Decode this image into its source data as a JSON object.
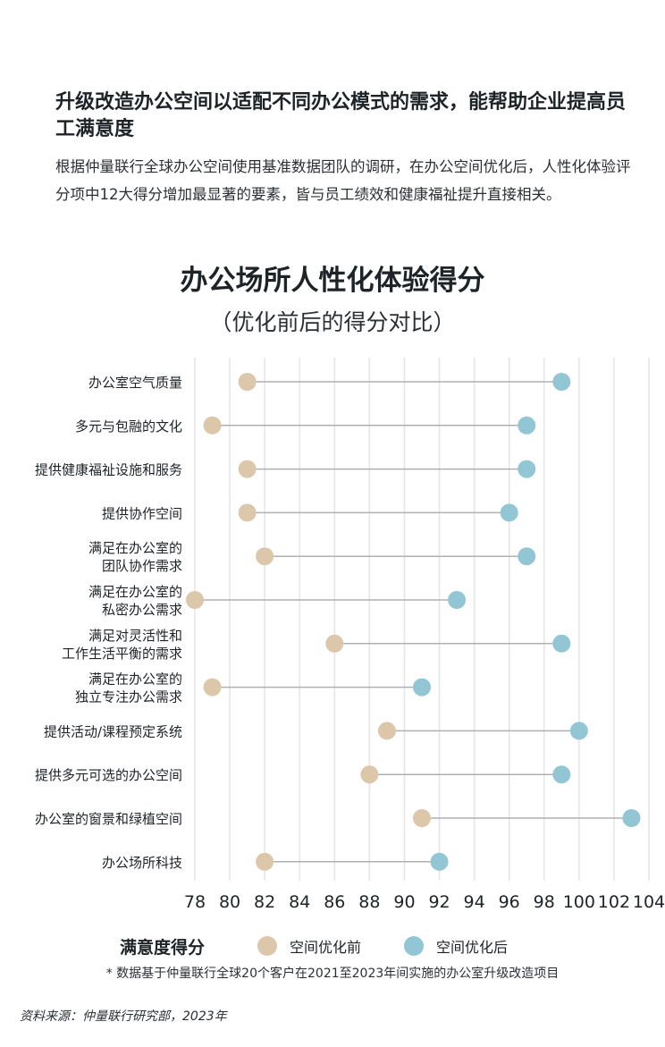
{
  "headline": "升级改造办公空间以适配不同办公模式的需求，能帮助企业提高员工满意度",
  "body": "根据仲量联行全球办公空间使用基准数据团队的调研，在办公空间优化后，人性化体验评分项中12大得分增加最显著的要素，皆与员工绩效和健康福祉提升直接相关。",
  "colors": {
    "before": "#dcc7ab",
    "after": "#92c6d5",
    "connector": "#b0b0b0",
    "grid": "#e6e6e6"
  },
  "chart_data": {
    "type": "dumbbell",
    "title": "办公场所人性化体验得分",
    "subtitle": "（优化前后的得分对比）",
    "xlim": [
      78,
      104
    ],
    "xticks": [
      "78",
      "80",
      "82",
      "84",
      "86",
      "88",
      "90",
      "92",
      "94",
      "96",
      "98",
      "100",
      "102",
      "104"
    ],
    "categories": [
      [
        "办公室空气质量"
      ],
      [
        "多元与包融的文化"
      ],
      [
        "提供健康福祉设施和服务"
      ],
      [
        "提供协作空间"
      ],
      [
        "满足在办公室的",
        "团队协作需求"
      ],
      [
        "满足在办公室的",
        "私密办公需求"
      ],
      [
        "满足对灵活性和",
        "工作生活平衡的需求"
      ],
      [
        "满足在办公室的",
        "独立专注办公需求"
      ],
      [
        "提供活动/课程预定系统"
      ],
      [
        "提供多元可选的办公空间"
      ],
      [
        "办公室的窗景和绿植空间"
      ],
      [
        "办公场所科技"
      ]
    ],
    "series": [
      {
        "name": "空间优化前",
        "values": [
          81,
          79,
          81,
          81,
          82,
          78,
          86,
          79,
          89,
          88,
          91,
          82
        ]
      },
      {
        "name": "空间优化后",
        "values": [
          99,
          97,
          97,
          96,
          97,
          93,
          99,
          91,
          100,
          99,
          103,
          92
        ]
      }
    ],
    "legend_title": "满意度得分"
  },
  "footnote": "* 数据基于仲量联行全球20个客户在2021至2023年间实施的办公室升级改造项目",
  "source": "资料来源：仲量联行研究部，2023年"
}
